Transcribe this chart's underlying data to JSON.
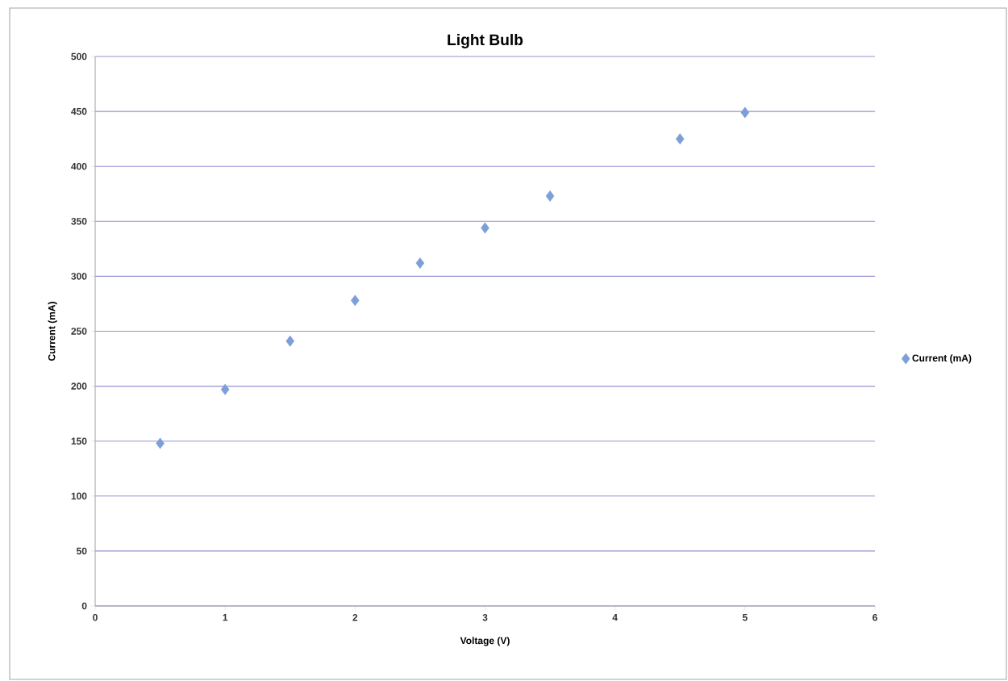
{
  "chart_data": {
    "type": "scatter",
    "title": "Light Bulb",
    "xlabel": "Voltage (V)",
    "ylabel": "Current (mA)",
    "x": [
      0.5,
      1,
      1.5,
      2,
      2.5,
      3,
      3.5,
      4.5,
      5
    ],
    "series": [
      {
        "name": "Current (mA)",
        "color": "#7d9fd8",
        "values": [
          148,
          197,
          241,
          278,
          312,
          344,
          373,
          425,
          449
        ]
      }
    ],
    "xlim": [
      0,
      6
    ],
    "xticks": [
      0,
      1,
      2,
      3,
      4,
      5,
      6
    ],
    "ylim": [
      0,
      500
    ],
    "yticks": [
      0,
      50,
      100,
      150,
      200,
      250,
      300,
      350,
      400,
      450,
      500
    ],
    "grid": "y",
    "legend": "right",
    "marker": "diamond"
  }
}
